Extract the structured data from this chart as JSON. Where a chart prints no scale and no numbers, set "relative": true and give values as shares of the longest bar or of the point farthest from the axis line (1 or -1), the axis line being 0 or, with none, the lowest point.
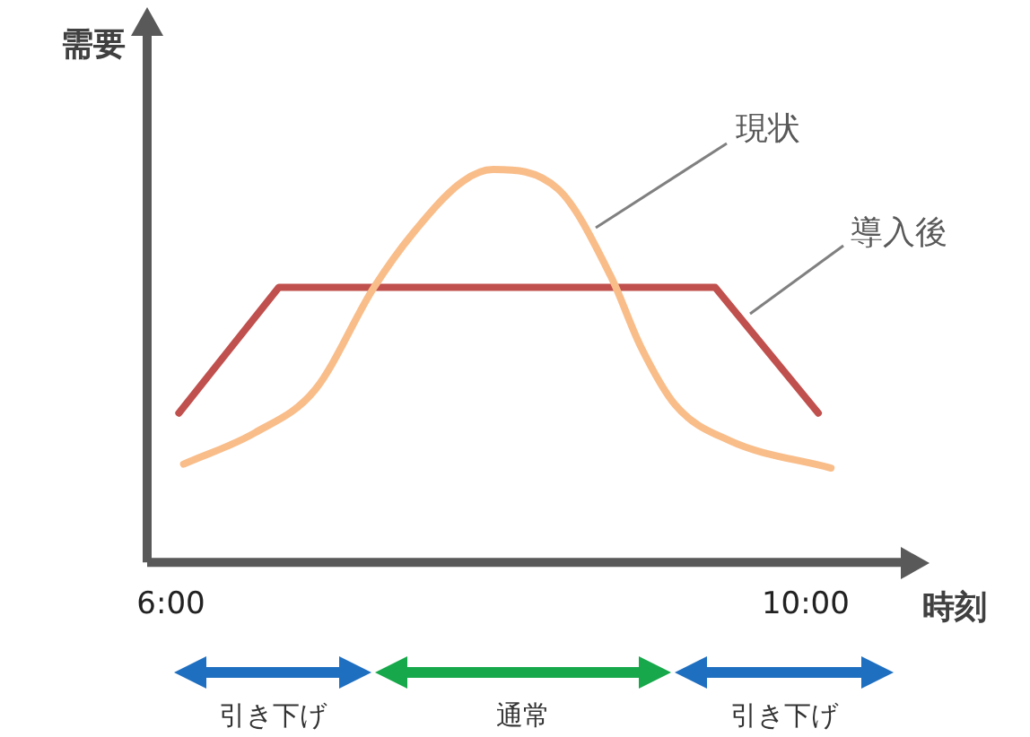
{
  "chart_data": {
    "type": "line",
    "relative": true,
    "xlabel": "時刻",
    "ylabel": "需要",
    "xlim": [
      5.85,
      10.6
    ],
    "xticks": [
      {
        "value": 6,
        "label": "6:00"
      },
      {
        "value": 10,
        "label": "10:00"
      }
    ],
    "series": [
      {
        "name": "現状",
        "color": "#f9bd8a",
        "x": [
          6.08,
          6.53,
          6.91,
          7.28,
          7.53,
          7.84,
          8.03,
          8.44,
          8.77,
          8.96,
          9.18,
          9.52,
          10.16
        ],
        "values": [
          0.25,
          0.33,
          0.44,
          0.7,
          0.84,
          0.97,
          1,
          0.95,
          0.73,
          0.55,
          0.4,
          0.31,
          0.24
        ]
      },
      {
        "name": "導入後",
        "color": "#c0504d",
        "x": [
          6.05,
          6.68,
          9.43,
          10.08
        ],
        "values": [
          0.38,
          0.7,
          0.7,
          0.38
        ]
      }
    ],
    "grid": false,
    "legend": false,
    "marker": "none",
    "line_style": "solid",
    "annotations": [
      "引き下げ",
      "通常",
      "引き下げ"
    ]
  }
}
